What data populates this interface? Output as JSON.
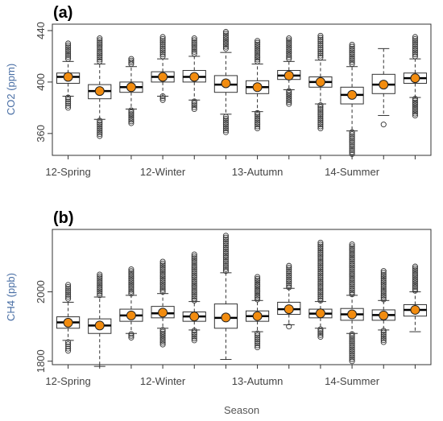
{
  "colors": {
    "mean_dot": "#f28c0f",
    "box_stroke": "#333333",
    "ylabel": "#4a6fa5"
  },
  "chart_data": [
    {
      "type": "boxplot",
      "panel_label": "(a)",
      "ylabel": "CO2 (ppm)",
      "xlabel": "",
      "ylim": [
        343,
        445
      ],
      "yticks": [
        360,
        400,
        440
      ],
      "x_tick_labels": [
        {
          "index": 1,
          "label": "12-Spring"
        },
        {
          "index": 4,
          "label": "12-Winter"
        },
        {
          "index": 7,
          "label": "13-Autumn"
        },
        {
          "index": 10,
          "label": "14-Summer"
        }
      ],
      "boxes": [
        {
          "q1": 399,
          "median": 404,
          "q3": 407,
          "whisker_low": 389,
          "whisker_high": 416,
          "mean": 404,
          "out_low": [
            380,
            388
          ],
          "out_high": [
            418,
            430
          ]
        },
        {
          "q1": 387,
          "median": 393,
          "q3": 398,
          "whisker_low": 371,
          "whisker_high": 414,
          "mean": 393,
          "out_low": [
            358,
            370
          ],
          "out_high": [
            416,
            434
          ]
        },
        {
          "q1": 392,
          "median": 396,
          "q3": 400,
          "whisker_low": 379,
          "whisker_high": 412,
          "mean": 396,
          "out_low": [
            368,
            378
          ],
          "out_high": [
            414,
            418
          ]
        },
        {
          "q1": 400,
          "median": 404,
          "q3": 408,
          "whisker_low": 389,
          "whisker_high": 418,
          "mean": 404,
          "out_low": [
            386,
            389
          ],
          "out_high": [
            420,
            435
          ]
        },
        {
          "q1": 400,
          "median": 404,
          "q3": 409,
          "whisker_low": 386,
          "whisker_high": 420,
          "mean": 404,
          "out_low": [
            379,
            385
          ],
          "out_high": [
            422,
            434
          ]
        },
        {
          "q1": 392,
          "median": 398,
          "q3": 405,
          "whisker_low": 375,
          "whisker_high": 423,
          "mean": 399,
          "out_low": [
            361,
            373
          ],
          "out_high": [
            426,
            439
          ]
        },
        {
          "q1": 391,
          "median": 396,
          "q3": 401,
          "whisker_low": 377,
          "whisker_high": 414,
          "mean": 396,
          "out_low": [
            364,
            376
          ],
          "out_high": [
            416,
            432
          ]
        },
        {
          "q1": 402,
          "median": 405,
          "q3": 409,
          "whisker_low": 394,
          "whisker_high": 416,
          "mean": 405,
          "out_low": [
            383,
            393
          ],
          "out_high": [
            418,
            434
          ]
        },
        {
          "q1": 396,
          "median": 400,
          "q3": 404,
          "whisker_low": 383,
          "whisker_high": 417,
          "mean": 400,
          "out_low": [
            364,
            382
          ],
          "out_high": [
            419,
            436
          ]
        },
        {
          "q1": 383,
          "median": 390,
          "q3": 396,
          "whisker_low": 362,
          "whisker_high": 412,
          "mean": 390,
          "out_low": [
            344,
            361
          ],
          "out_high": [
            414,
            429
          ]
        },
        {
          "q1": 391,
          "median": 398,
          "q3": 406,
          "whisker_low": 374,
          "whisker_high": 426,
          "mean": 398,
          "out_low": [
            367
          ],
          "out_high": []
        },
        {
          "q1": 399,
          "median": 403,
          "q3": 407,
          "whisker_low": 388,
          "whisker_high": 418,
          "mean": 403,
          "out_low": [
            374,
            387
          ],
          "out_high": [
            420,
            435
          ]
        }
      ]
    },
    {
      "type": "boxplot",
      "panel_label": "(b)",
      "ylabel": "CH4 (ppb)",
      "xlabel": "Season",
      "ylim": [
        1790,
        2180
      ],
      "yticks": [
        1800,
        2000
      ],
      "x_tick_labels": [
        {
          "index": 1,
          "label": "12-Spring"
        },
        {
          "index": 4,
          "label": "12-Winter"
        },
        {
          "index": 7,
          "label": "13-Autumn"
        },
        {
          "index": 10,
          "label": "14-Summer"
        }
      ],
      "boxes": [
        {
          "q1": 1895,
          "median": 1912,
          "q3": 1928,
          "whisker_low": 1860,
          "whisker_high": 1970,
          "mean": 1911,
          "out_low": [
            1830,
            1855
          ],
          "out_high": [
            1980,
            2020
          ]
        },
        {
          "q1": 1880,
          "median": 1903,
          "q3": 1922,
          "whisker_low": 1785,
          "whisker_high": 1985,
          "mean": 1903,
          "out_low": [],
          "out_high": [
            1990,
            2050
          ]
        },
        {
          "q1": 1915,
          "median": 1932,
          "q3": 1950,
          "whisker_low": 1880,
          "whisker_high": 1990,
          "mean": 1932,
          "out_low": [
            1868,
            1878
          ],
          "out_high": [
            1995,
            2065
          ]
        },
        {
          "q1": 1925,
          "median": 1938,
          "q3": 1958,
          "whisker_low": 1895,
          "whisker_high": 1995,
          "mean": 1940,
          "out_low": [
            1848,
            1890
          ],
          "out_high": [
            2000,
            2087
          ]
        },
        {
          "q1": 1915,
          "median": 1929,
          "q3": 1942,
          "whisker_low": 1890,
          "whisker_high": 1972,
          "mean": 1929,
          "out_low": [
            1860,
            1888
          ],
          "out_high": [
            1975,
            2108
          ]
        },
        {
          "q1": 1895,
          "median": 1925,
          "q3": 1965,
          "whisker_low": 1805,
          "whisker_high": 2055,
          "mean": 1926,
          "out_low": [],
          "out_high": [
            2060,
            2162
          ]
        },
        {
          "q1": 1915,
          "median": 1930,
          "q3": 1945,
          "whisker_low": 1885,
          "whisker_high": 1975,
          "mean": 1930,
          "out_low": [
            1840,
            1880
          ],
          "out_high": [
            1978,
            2043
          ]
        },
        {
          "q1": 1935,
          "median": 1950,
          "q3": 1970,
          "whisker_low": 1905,
          "whisker_high": 2010,
          "mean": 1950,
          "out_low": [
            1900
          ],
          "out_high": [
            2013,
            2075
          ]
        },
        {
          "q1": 1925,
          "median": 1937,
          "q3": 1950,
          "whisker_low": 1895,
          "whisker_high": 1972,
          "mean": 1938,
          "out_low": [
            1870,
            1892
          ],
          "out_high": [
            1975,
            2142
          ]
        },
        {
          "q1": 1918,
          "median": 1935,
          "q3": 1952,
          "whisker_low": 1880,
          "whisker_high": 1990,
          "mean": 1935,
          "out_low": [
            1800,
            1878
          ],
          "out_high": [
            1993,
            2137
          ]
        },
        {
          "q1": 1918,
          "median": 1933,
          "q3": 1948,
          "whisker_low": 1890,
          "whisker_high": 1975,
          "mean": 1932,
          "out_low": [
            1855,
            1888
          ],
          "out_high": [
            1978,
            2060
          ]
        },
        {
          "q1": 1930,
          "median": 1948,
          "q3": 1963,
          "whisker_low": 1885,
          "whisker_high": 2000,
          "mean": 1948,
          "out_low": [],
          "out_high": [
            2003,
            2073
          ]
        }
      ]
    }
  ]
}
